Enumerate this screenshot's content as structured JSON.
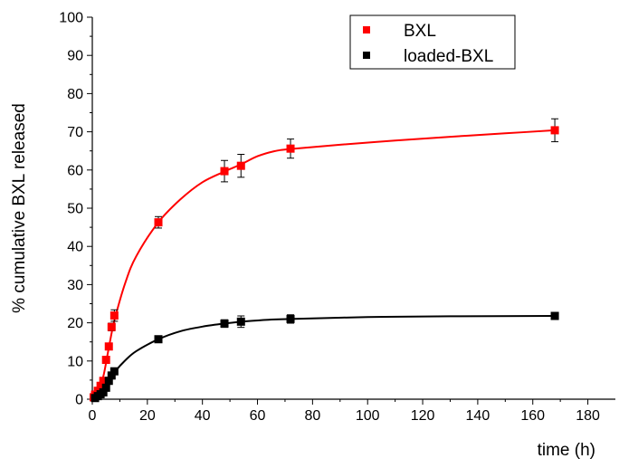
{
  "chart_data": {
    "type": "scatter",
    "xlabel": "time (h)",
    "ylabel": "% cumulative BXL released",
    "xlim": [
      0,
      190
    ],
    "ylim": [
      0,
      100
    ],
    "xticks": [
      0,
      20,
      40,
      60,
      80,
      100,
      120,
      140,
      160,
      180
    ],
    "yticks": [
      0,
      10,
      20,
      30,
      40,
      50,
      60,
      70,
      80,
      90,
      100
    ],
    "grid": false,
    "legend_position": "top-right",
    "series": [
      {
        "name": "BXL",
        "color": "#ff0000",
        "marker": "square",
        "x": [
          0.5,
          1,
          2,
          3,
          4,
          5,
          6,
          7,
          8,
          24,
          48,
          54,
          72,
          168
        ],
        "y": [
          0.5,
          1.2,
          2.2,
          3.5,
          4.8,
          10.3,
          13.8,
          18.9,
          21.9,
          46.3,
          59.7,
          61.1,
          65.6,
          70.4
        ],
        "err": [
          0.3,
          0.4,
          0.4,
          0.5,
          0.5,
          0.7,
          0.8,
          1.0,
          1.5,
          1.5,
          2.8,
          3.0,
          2.5,
          3.0
        ],
        "fit": [
          [
            0,
            0
          ],
          [
            2,
            2.5
          ],
          [
            4,
            6
          ],
          [
            6,
            13.5
          ],
          [
            8,
            20.5
          ],
          [
            12,
            30.5
          ],
          [
            16,
            37.5
          ],
          [
            24,
            46.3
          ],
          [
            32,
            52.3
          ],
          [
            40,
            56.8
          ],
          [
            48,
            59.6
          ],
          [
            54,
            61.5
          ],
          [
            60,
            63.6
          ],
          [
            66,
            64.9
          ],
          [
            72,
            65.5
          ],
          [
            90,
            66.6
          ],
          [
            110,
            67.7
          ],
          [
            130,
            68.7
          ],
          [
            150,
            69.6
          ],
          [
            168,
            70.4
          ]
        ]
      },
      {
        "name": "loaded-BXL",
        "color": "#000000",
        "marker": "square",
        "x": [
          1,
          2,
          3,
          4,
          5,
          6,
          7,
          8,
          24,
          48,
          54,
          72,
          168
        ],
        "y": [
          0.3,
          0.8,
          1.3,
          1.8,
          3.0,
          4.8,
          6.2,
          7.3,
          15.7,
          19.8,
          20.3,
          21.0,
          21.8
        ],
        "err": [
          0.2,
          0.3,
          0.3,
          0.3,
          0.4,
          0.5,
          0.6,
          0.8,
          0.6,
          1.0,
          1.5,
          1.1,
          0.5
        ],
        "fit": [
          [
            0,
            0
          ],
          [
            2,
            0.8
          ],
          [
            4,
            2.2
          ],
          [
            6,
            4.5
          ],
          [
            8,
            7.0
          ],
          [
            12,
            10.2
          ],
          [
            16,
            12.6
          ],
          [
            24,
            15.7
          ],
          [
            32,
            17.8
          ],
          [
            40,
            19.0
          ],
          [
            48,
            19.8
          ],
          [
            56,
            20.4
          ],
          [
            64,
            20.8
          ],
          [
            72,
            21.0
          ],
          [
            100,
            21.5
          ],
          [
            130,
            21.7
          ],
          [
            168,
            21.8
          ]
        ]
      }
    ]
  }
}
